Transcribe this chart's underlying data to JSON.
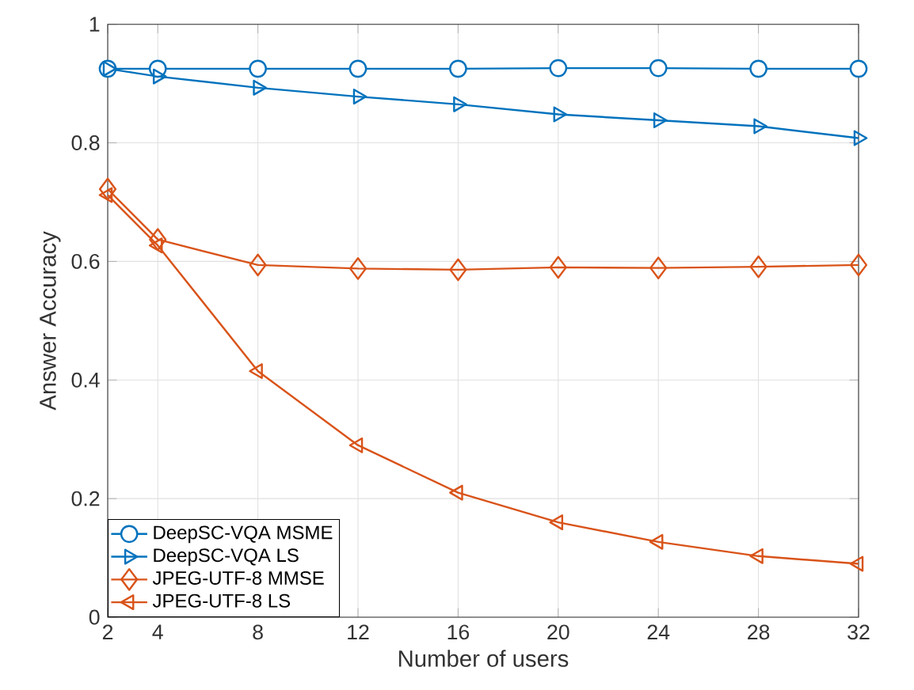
{
  "chart_data": {
    "type": "line",
    "xlabel": "Number of users",
    "ylabel": "Answer Accuracy",
    "x": [
      2,
      4,
      8,
      12,
      16,
      20,
      24,
      28,
      32
    ],
    "series": [
      {
        "name": "DeepSC-VQA MSME",
        "color": "#0072bd",
        "marker": "circle",
        "values": [
          0.925,
          0.925,
          0.925,
          0.925,
          0.925,
          0.926,
          0.926,
          0.925,
          0.925
        ]
      },
      {
        "name": "DeepSC-VQA LS",
        "color": "#0072bd",
        "marker": "triangle-right",
        "values": [
          0.925,
          0.912,
          0.893,
          0.878,
          0.865,
          0.848,
          0.838,
          0.828,
          0.808
        ]
      },
      {
        "name": "JPEG-UTF-8 MMSE",
        "color": "#d95319",
        "marker": "diamond",
        "values": [
          0.722,
          0.637,
          0.594,
          0.588,
          0.586,
          0.59,
          0.589,
          0.591,
          0.594
        ]
      },
      {
        "name": "JPEG-UTF-8 LS",
        "color": "#d95319",
        "marker": "triangle-left",
        "values": [
          0.712,
          0.627,
          0.415,
          0.29,
          0.21,
          0.16,
          0.127,
          0.103,
          0.09
        ]
      }
    ],
    "xlim": [
      2,
      32
    ],
    "ylim": [
      0,
      1
    ],
    "xticks": [
      2,
      4,
      8,
      12,
      16,
      20,
      24,
      28,
      32
    ],
    "yticks": [
      0,
      0.2,
      0.4,
      0.6,
      0.8,
      1
    ],
    "grid": true,
    "legend": "bottom left",
    "line_style": "solid"
  }
}
